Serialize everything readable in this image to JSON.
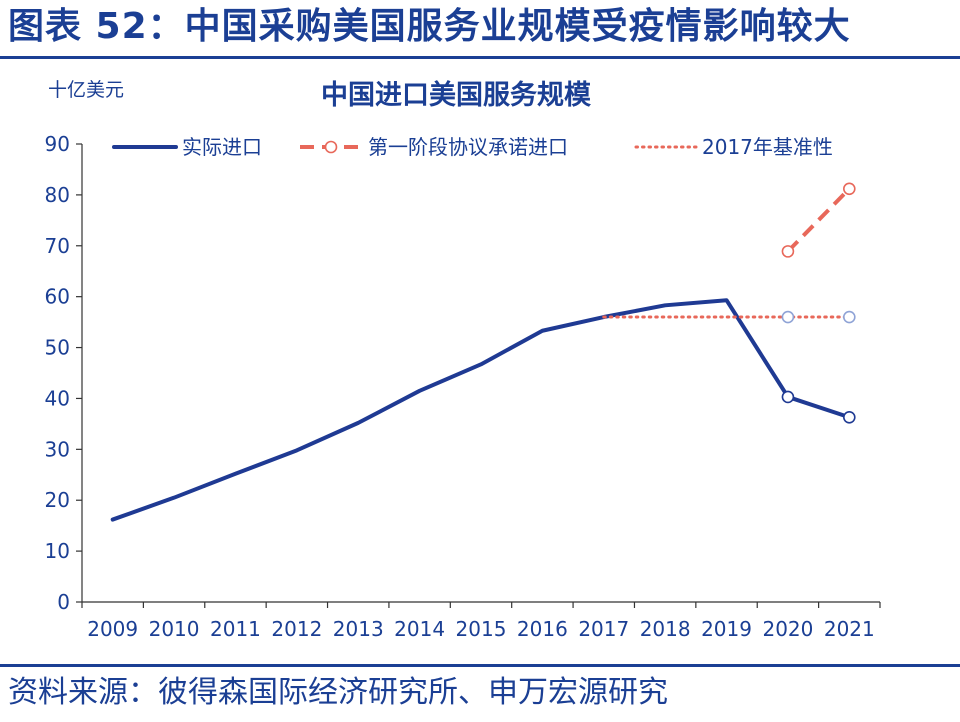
{
  "figure_title": "图表 52：中国采购美国服务业规模受疫情影响较大",
  "source": "资料来源：彼得森国际经济研究所、申万宏源研究",
  "colors": {
    "primary": "#1b3f94",
    "actual": "#1f3a93",
    "commitment": "#e8685a",
    "baseline": "#e8685a"
  },
  "chart_data": {
    "type": "line",
    "title": "中国进口美国服务规模",
    "unit": "十亿美元",
    "categories": [
      "2009",
      "2010",
      "2011",
      "2012",
      "2013",
      "2014",
      "2015",
      "2016",
      "2017",
      "2018",
      "2019",
      "2020",
      "2021"
    ],
    "ylim": [
      0,
      90
    ],
    "yticks": [
      0,
      10,
      20,
      30,
      40,
      50,
      60,
      70,
      80,
      90
    ],
    "grid": false,
    "legend_position": "top",
    "series": [
      {
        "name": "实际进口",
        "style": "solid",
        "points": [
          {
            "x": 2009.0,
            "y": 16.2
          },
          {
            "x": 2010.0,
            "y": 20.5
          },
          {
            "x": 2011.0,
            "y": 25.2
          },
          {
            "x": 2012.0,
            "y": 29.8
          },
          {
            "x": 2013.0,
            "y": 35.2
          },
          {
            "x": 2014.0,
            "y": 41.5
          },
          {
            "x": 2015.0,
            "y": 46.7
          },
          {
            "x": 2016.0,
            "y": 53.3
          },
          {
            "x": 2017.0,
            "y": 56.0
          },
          {
            "x": 2018.0,
            "y": 58.3
          },
          {
            "x": 2019.0,
            "y": 59.3
          },
          {
            "x": 2020.0,
            "y": 40.3
          },
          {
            "x": 2021.0,
            "y": 36.3
          }
        ],
        "marked_points": [
          2020,
          2021
        ]
      },
      {
        "name": "第一阶段协议承诺进口",
        "style": "dashed",
        "points": [
          {
            "x": 2020.0,
            "y": 68.9
          },
          {
            "x": 2021.0,
            "y": 81.2
          }
        ],
        "marked_points": [
          2020,
          2021
        ]
      },
      {
        "name": "2017年基准性",
        "style": "dotted",
        "points": [
          {
            "x": 2017.0,
            "y": 56.0
          },
          {
            "x": 2021.0,
            "y": 56.0
          }
        ],
        "marked_points": [
          2020,
          2021
        ]
      }
    ]
  }
}
